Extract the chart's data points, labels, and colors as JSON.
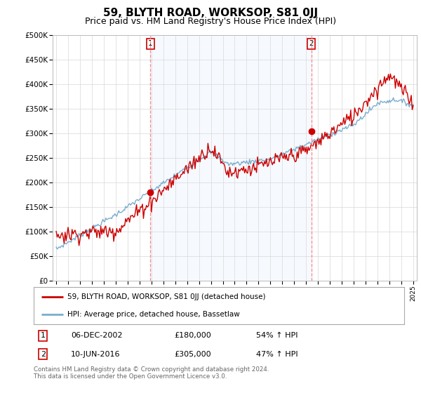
{
  "title": "59, BLYTH ROAD, WORKSOP, S81 0JJ",
  "subtitle": "Price paid vs. HM Land Registry's House Price Index (HPI)",
  "title_fontsize": 11,
  "subtitle_fontsize": 9,
  "red_label": "59, BLYTH ROAD, WORKSOP, S81 0JJ (detached house)",
  "blue_label": "HPI: Average price, detached house, Bassetlaw",
  "sale1_date": 2002.92,
  "sale1_price": 180000,
  "sale1_text": "06-DEC-2002",
  "sale1_pct": "54% ↑ HPI",
  "sale2_date": 2016.44,
  "sale2_price": 305000,
  "sale2_text": "10-JUN-2016",
  "sale2_pct": "47% ↑ HPI",
  "ylim": [
    0,
    500000
  ],
  "xlim_start": 1994.7,
  "xlim_end": 2025.3,
  "background_color": "#ffffff",
  "chart_bg": "#ffffff",
  "shade_color": "#ddeeff",
  "grid_color": "#d8d8d8",
  "red_color": "#cc0000",
  "blue_color": "#7aadcf",
  "dashed_color": "#ff8888",
  "marker_box_color": "#cc0000",
  "footer": "Contains HM Land Registry data © Crown copyright and database right 2024.\nThis data is licensed under the Open Government Licence v3.0."
}
